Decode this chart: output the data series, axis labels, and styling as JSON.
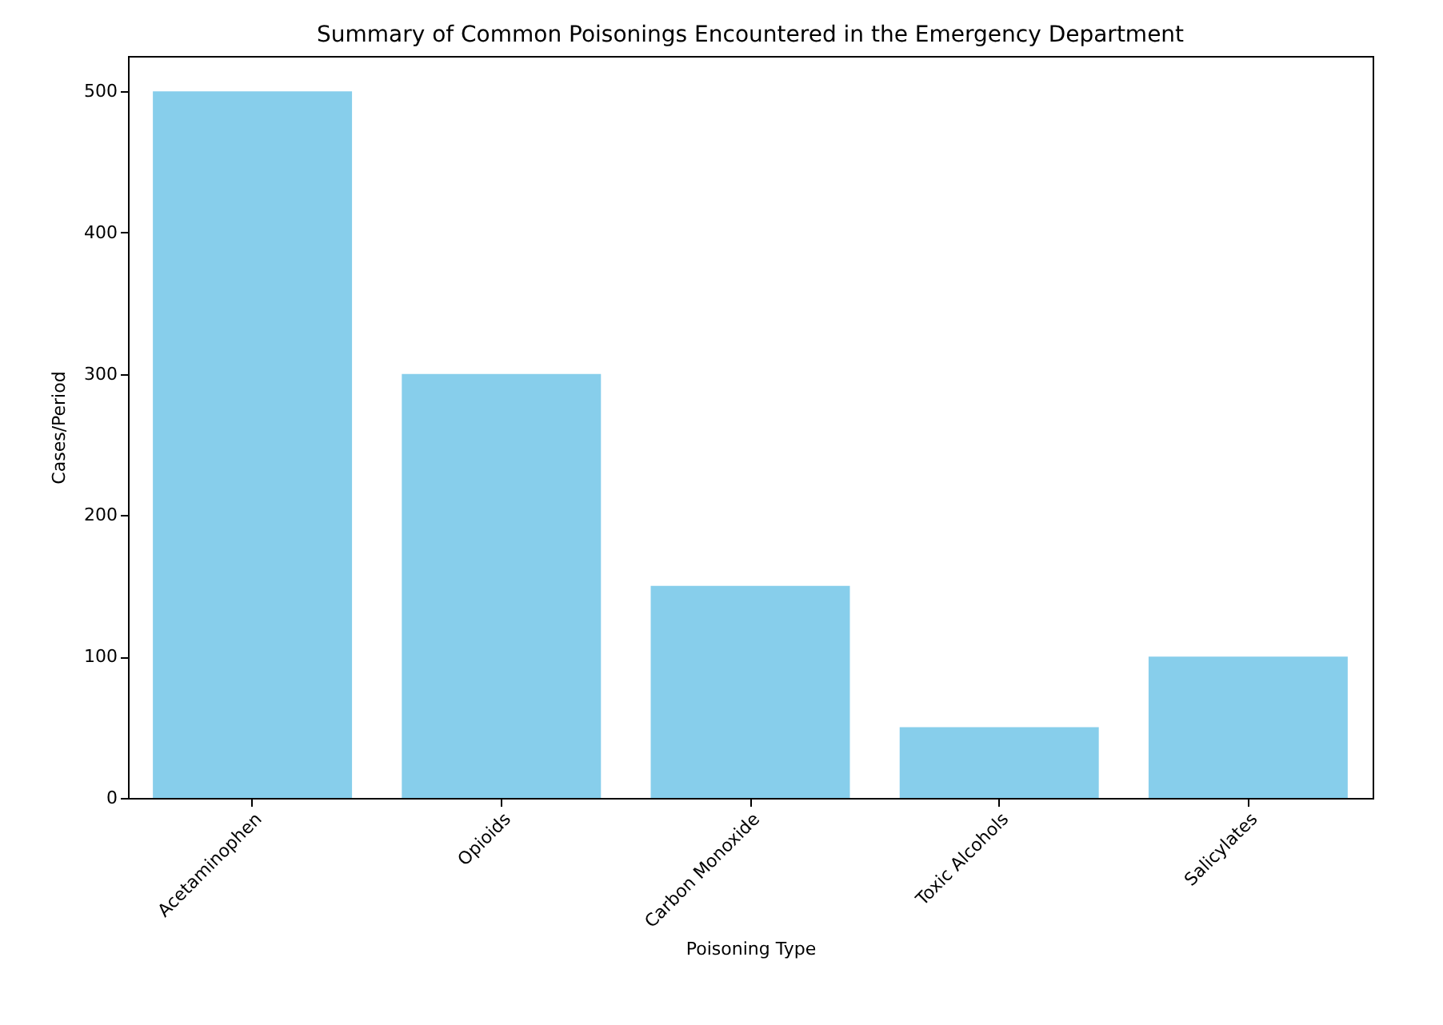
{
  "chart_data": {
    "type": "bar",
    "title": "Summary of Common Poisonings Encountered in the Emergency Department",
    "xlabel": "Poisoning Type",
    "ylabel": "Cases/Period",
    "categories": [
      "Acetaminophen",
      "Opioids",
      "Carbon Monoxide",
      "Toxic Alcohols",
      "Salicylates"
    ],
    "values": [
      500,
      300,
      150,
      50,
      100
    ],
    "color": "#87ceeb",
    "ylim": [
      0,
      525
    ],
    "yticks": [
      0,
      100,
      200,
      300,
      400,
      500
    ]
  }
}
